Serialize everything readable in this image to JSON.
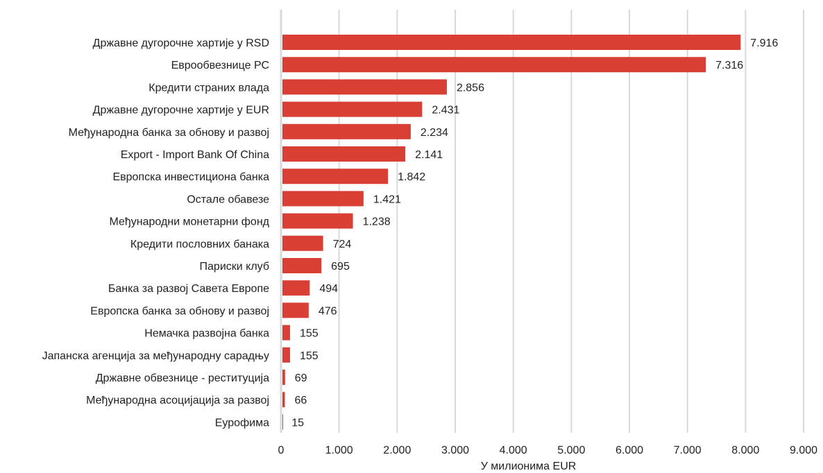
{
  "chart_data": {
    "type": "bar",
    "orientation": "horizontal",
    "title": "",
    "xlabel": "У милионима EUR",
    "ylabel": "",
    "xlim": [
      0,
      9000
    ],
    "x_ticks": [
      0,
      1000,
      2000,
      3000,
      4000,
      5000,
      6000,
      7000,
      8000,
      9000
    ],
    "x_tick_labels": [
      "0",
      "1.000",
      "2.000",
      "3.000",
      "4.000",
      "5.000",
      "6.000",
      "7.000",
      "8.000",
      "9.000"
    ],
    "grid": "vertical",
    "legend": "none",
    "bar_color": "#d93f34",
    "categories": [
      "Државне дугорочне хартије у RSD",
      "Еврообвезнице РС",
      "Кредити страних влада",
      "Државне дугорочне хартије  у EUR",
      "Међународна банка за обнову и развој",
      "Export - Import Bank Of China ",
      "Европска инвестициона банка",
      "Остале обавезе",
      "Међународни монетарни фонд",
      "Кредити пословних банака",
      "Париски клуб",
      "Банка за развој Савета Европе",
      "Европска банка за обнову и развој",
      "Немачка развојна банка",
      "Јапанска агенција за међународну сарадњу",
      "Државне обвезнице - реституција",
      "Међународна асоцијација за развој",
      "Еурофима"
    ],
    "values": [
      7916,
      7316,
      2856,
      2431,
      2234,
      2141,
      1842,
      1421,
      1238,
      724,
      695,
      494,
      476,
      155,
      155,
      69,
      66,
      15
    ],
    "value_labels": [
      "7.916",
      "7.316",
      "2.856",
      "2.431",
      "2.234",
      "2.141",
      "1.842",
      "1.421",
      "1.238",
      "724",
      "695",
      "494",
      "476",
      "155",
      "155",
      "69",
      "66",
      "15"
    ]
  }
}
